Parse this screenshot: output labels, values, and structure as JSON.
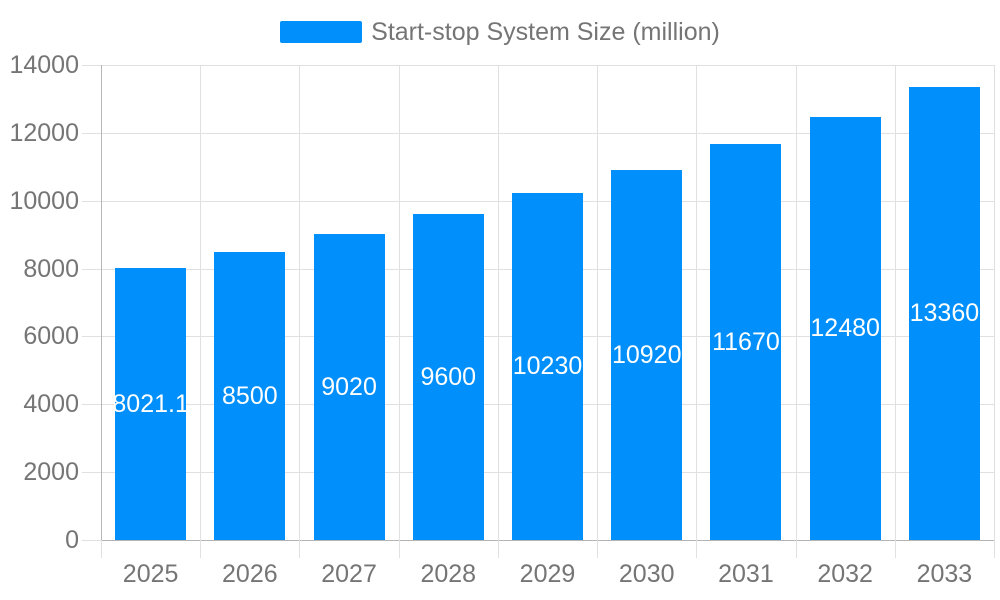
{
  "chart_data": {
    "type": "bar",
    "title": "Start-stop System Size (million)",
    "categories": [
      "2025",
      "2026",
      "2027",
      "2028",
      "2029",
      "2030",
      "2031",
      "2032",
      "2033"
    ],
    "series": [
      {
        "name": "Start-stop System Size (million)",
        "values": [
          8021.1,
          8500,
          9020,
          9600,
          10230,
          10920,
          11670,
          12480,
          13360
        ]
      }
    ],
    "value_labels": [
      "8021.1",
      "8500",
      "9020",
      "9600",
      "10230",
      "10920",
      "11670",
      "12480",
      "13360"
    ],
    "y_ticks": [
      0,
      2000,
      4000,
      6000,
      8000,
      10000,
      12000,
      14000
    ],
    "y_tick_labels": [
      "0",
      "2000",
      "4000",
      "6000",
      "8000",
      "10000",
      "12000",
      "14000"
    ],
    "ylim": [
      0,
      14000
    ],
    "xlabel": "",
    "ylabel": "",
    "grid": true,
    "legend_position": "top",
    "bar_color": "#008FFB",
    "grid_color": "#e0e0e0",
    "axis_line_color": "#b4b4b4",
    "axis_label_color": "#757575",
    "data_label_color": "#ffffff"
  }
}
